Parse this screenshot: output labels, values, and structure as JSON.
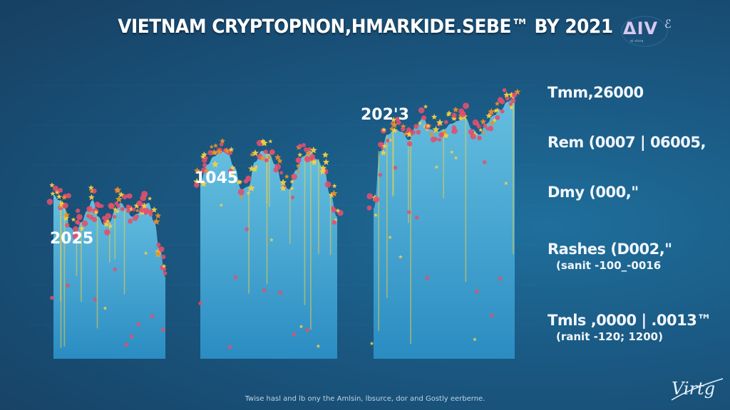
{
  "title": "VIETNAM CRYPTOPNON,HMARKIDE.SEBE™ BY 2021",
  "logo": {
    "mark": "ΔIV",
    "sub": "ai vivra",
    "glyph": "ℰ"
  },
  "colors": {
    "bar_top": "#5ab4d8",
    "bar_bottom": "#2c8fc4",
    "marker_red": "#e0506e",
    "marker_yellow": "#f5d040",
    "marker_orange": "#e8902a",
    "gridline": "#8fb3cc"
  },
  "chart_data": {
    "type": "area",
    "title": "VIETNAM CRYPTOPNON,HMARKIDE.SEBE™ BY 2021",
    "xlabel": "",
    "ylabel": "",
    "grid": true,
    "ylim": [
      0,
      100
    ],
    "legend": "none",
    "groups": [
      {
        "label": "2025",
        "x_range": [
          0,
          20
        ],
        "profile": [
          60,
          58,
          55,
          48,
          46,
          50,
          54,
          58,
          52,
          49,
          50,
          54,
          57,
          55,
          52,
          53,
          56,
          57,
          50,
          40,
          30
        ]
      },
      {
        "label": "1045",
        "x_range": [
          0,
          20
        ],
        "profile": [
          65,
          71,
          74,
          76,
          75,
          70,
          62,
          63,
          72,
          76,
          75,
          71,
          64,
          62,
          69,
          74,
          76,
          73,
          70,
          60,
          52
        ]
      },
      {
        "label": "202'3",
        "x_range": [
          0,
          20
        ],
        "profile": [
          55,
          76,
          82,
          84,
          83,
          80,
          85,
          88,
          84,
          83,
          84,
          86,
          87,
          88,
          84,
          82,
          86,
          89,
          91,
          94,
          96
        ]
      }
    ],
    "series": [
      {
        "name": "red markers",
        "marker": "circle-flower",
        "color": "#e0506e"
      },
      {
        "name": "yellow markers",
        "marker": "star",
        "color": "#f5d040"
      }
    ],
    "annotations": [
      {
        "main": "Tmm,26000",
        "sub": ""
      },
      {
        "main": "Rem (0007 | 06005,",
        "sub": ""
      },
      {
        "main": "Dmy (000,\"",
        "sub": ""
      },
      {
        "main": "Rashes (D002,\"",
        "sub": "(sanit -100_-0016"
      },
      {
        "main": "Tmls ,0000 | .0013™",
        "sub": "(ranit -120; 1200)"
      }
    ]
  },
  "footnote": "Twise hasl and lb ony the Amlsin, lbsurce, dor and Gostly eerberne.",
  "signature": "Virtg"
}
